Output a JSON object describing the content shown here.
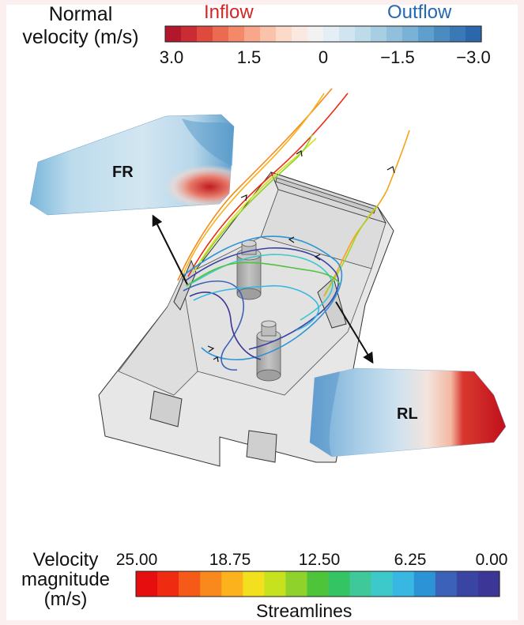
{
  "normal_velocity": {
    "title_line1": "Normal",
    "title_line2": "velocity (m/s)",
    "inflow_label": "Inflow",
    "outflow_label": "Outflow",
    "ticks": [
      "3.0",
      "1.5",
      "0",
      "−1.5",
      "−3.0"
    ],
    "colors": [
      "#b2182b",
      "#cb2b32",
      "#de4a3e",
      "#eb6a52",
      "#f4896a",
      "#f8a78a",
      "#fbc2ab",
      "#fcd9c9",
      "#fbe9e1",
      "#f2f2f2",
      "#e4eef4",
      "#d1e5f0",
      "#bedbea",
      "#a8cee4",
      "#92c0dc",
      "#7ab2d5",
      "#5e9fcb",
      "#4a8cc0",
      "#3a79b6",
      "#2c66ab"
    ]
  },
  "panels": {
    "fr_label": "FR",
    "rl_label": "RL"
  },
  "velocity_magnitude": {
    "title_line1": "Velocity",
    "title_line2": "magnitude",
    "title_line3": "(m/s)",
    "ticks": [
      "25.00",
      "18.75",
      "12.50",
      "6.25",
      "0.00"
    ],
    "caption": "Streamlines",
    "colors": [
      "#e60e0e",
      "#ef2b12",
      "#f55a18",
      "#f9891c",
      "#fcb21c",
      "#f2df1e",
      "#c6e21e",
      "#8fd22b",
      "#4ec43b",
      "#35c463",
      "#3fc99b",
      "#3dc9c9",
      "#39b7e3",
      "#2b93d6",
      "#3b62b8",
      "#3a45a3",
      "#3c3796"
    ]
  }
}
